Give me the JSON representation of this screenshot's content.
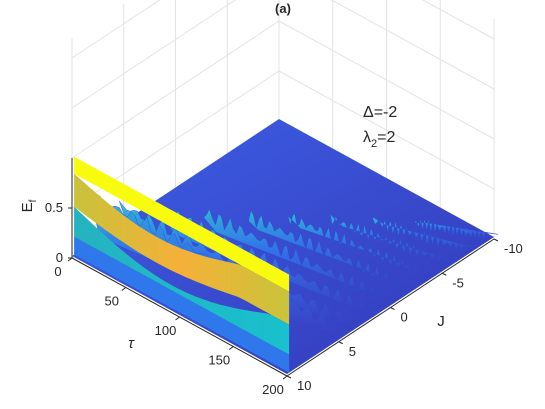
{
  "chart_data": {
    "type": "surface",
    "title": "(a)",
    "xlabel": "τ",
    "ylabel": "J",
    "zlabel": "E",
    "zlabel_sub": "f",
    "x_ticks": [
      "0",
      "50",
      "100",
      "150",
      "200"
    ],
    "y_ticks": [
      "-10",
      "-5",
      "0",
      "5",
      "10"
    ],
    "z_ticks": [
      "0",
      "0.5"
    ],
    "xlim": [
      0,
      200
    ],
    "ylim": [
      -10,
      10
    ],
    "zlim": [
      0,
      1
    ],
    "annotation": {
      "line1": "Δ=-2",
      "line2_main": "λ",
      "line2_sub": "2",
      "line2_rest": "=2"
    },
    "wall": {
      "J": 10,
      "description_levels": [
        1.0,
        0.83,
        0.5,
        0.2
      ]
    },
    "ridges": [
      {
        "J": 8.5,
        "tau_start": 0,
        "peak": 0.55
      },
      {
        "J": 7.0,
        "tau_start": 15,
        "peak": 0.42
      },
      {
        "J": 5.0,
        "tau_start": 35,
        "peak": 0.36
      },
      {
        "J": 3.0,
        "tau_start": 55,
        "peak": 0.3
      },
      {
        "J": 1.0,
        "tau_start": 75,
        "peak": 0.26
      },
      {
        "J": -1.0,
        "tau_start": 95,
        "peak": 0.22
      },
      {
        "J": -3.0,
        "tau_start": 115,
        "peak": 0.18
      },
      {
        "J": -5.0,
        "tau_start": 135,
        "peak": 0.14
      },
      {
        "J": -7.0,
        "tau_start": 155,
        "peak": 0.1
      }
    ],
    "grid": true
  },
  "colors": {
    "yellow": "#f9fb0e",
    "orange": "#f5b73c",
    "teal": "#1ab8c8",
    "blue": "#2d6cf0",
    "deep": "#3a3ec7",
    "grid": "#e3e3e3",
    "axis": "#262626"
  }
}
